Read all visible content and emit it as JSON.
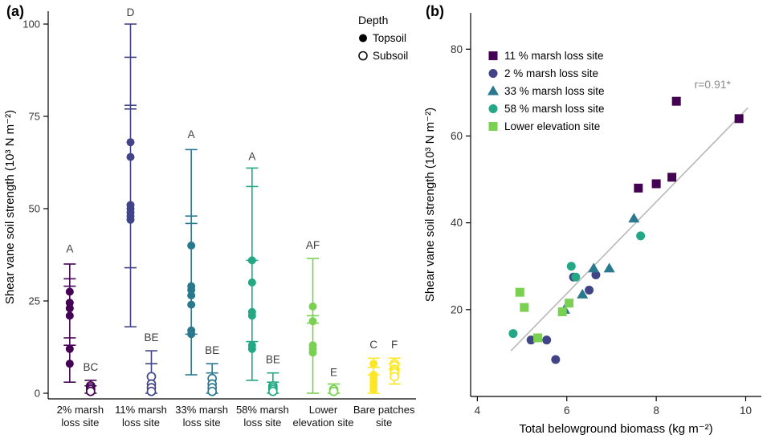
{
  "figure": {
    "background": "#ffffff"
  },
  "chart_data": [
    {
      "id": "a",
      "tag": "(a)",
      "type": "scatter",
      "ylabel": "Shear vane soil strength  (10³ N m⁻²)",
      "ylim": [
        -2,
        104
      ],
      "yticks": [
        0,
        25,
        50,
        75,
        100
      ],
      "grid": false,
      "legend": {
        "title": "Depth",
        "position": "top-right-inside",
        "items": [
          {
            "label": "Topsoil",
            "marker": "filled-circle",
            "color": "#000000"
          },
          {
            "label": "Subsoil",
            "marker": "open-circle",
            "color": "#000000"
          }
        ]
      },
      "sites": [
        {
          "label_line1": "2% marsh",
          "label_line2": "loss site",
          "color": "#440154",
          "topsoil": {
            "points": [
              27.5,
              24.5,
              23,
              21,
              12,
              8
            ],
            "whisker_low": 3,
            "whisker_high": 35,
            "caps": [
              35,
              31,
              29,
              15,
              13,
              3
            ],
            "letter": "A",
            "letter_y": 39
          },
          "subsoil": {
            "points": [
              2,
              1.5,
              1,
              0.5
            ],
            "whisker_low": 0,
            "whisker_high": 3.5,
            "caps": [
              3.5,
              2,
              0
            ],
            "letter": "BC",
            "letter_y": 7
          }
        },
        {
          "label_line1": "11% marsh",
          "label_line2": "loss site",
          "color": "#414487",
          "topsoil": {
            "points": [
              68,
              64,
              51,
              50,
              49,
              48,
              47
            ],
            "whisker_low": 18,
            "whisker_high": 100,
            "caps": [
              100,
              91,
              78,
              77,
              34,
              18
            ],
            "letter": "D",
            "letter_y": 103
          },
          "subsoil": {
            "points": [
              4.5,
              2.5,
              1.5,
              0.5
            ],
            "whisker_low": 0,
            "whisker_high": 11.5,
            "caps": [
              11.5,
              8,
              0
            ],
            "letter": "BE",
            "letter_y": 15
          }
        },
        {
          "label_line1": "33% marsh",
          "label_line2": "loss site",
          "color": "#2a788e",
          "topsoil": {
            "points": [
              40,
              29,
              28,
              26.5,
              24,
              17,
              16
            ],
            "whisker_low": 5,
            "whisker_high": 66,
            "caps": [
              66,
              48,
              46,
              16,
              5
            ],
            "letter": "A",
            "letter_y": 70
          },
          "subsoil": {
            "points": [
              4,
              2.5,
              1.5,
              0.5
            ],
            "whisker_low": 0,
            "whisker_high": 8,
            "caps": [
              8,
              5.5,
              0
            ],
            "letter": "BE",
            "letter_y": 11.5
          }
        },
        {
          "label_line1": "58% marsh",
          "label_line2": "loss site",
          "color": "#22a884",
          "topsoil": {
            "points": [
              36,
              30,
              22,
              21,
              13,
              12
            ],
            "whisker_low": 3.5,
            "whisker_high": 61,
            "caps": [
              61,
              56,
              36,
              14,
              3.5
            ],
            "letter": "A",
            "letter_y": 64
          },
          "subsoil": {
            "points": [
              2,
              1.5,
              1,
              0.5
            ],
            "whisker_low": 0,
            "whisker_high": 5.5,
            "caps": [
              5.5,
              3,
              0
            ],
            "letter": "BE",
            "letter_y": 9
          }
        },
        {
          "label_line1": "Lower",
          "label_line2": "elevation site",
          "color": "#7ad151",
          "topsoil": {
            "points": [
              23.5,
              19.5,
              13,
              12,
              11
            ],
            "whisker_low": 0,
            "whisker_high": 36.5,
            "caps": [
              36.5,
              21,
              19,
              0
            ],
            "letter": "AF",
            "letter_y": 40
          },
          "subsoil": {
            "points": [
              1,
              0.5
            ],
            "whisker_low": 0,
            "whisker_high": 2.5,
            "caps": [
              2.5,
              0
            ],
            "letter": "E",
            "letter_y": 5.5
          }
        },
        {
          "label_line1": "Bare patches",
          "label_line2": "site",
          "color": "#fde725",
          "topsoil": {
            "points": [
              8,
              5,
              4,
              3,
              2,
              1
            ],
            "whisker_low": 0,
            "whisker_high": 9.5,
            "caps": [
              9.5,
              7,
              5,
              0
            ],
            "letter": "C",
            "letter_y": 13
          },
          "subsoil": {
            "points": [
              8,
              7.5,
              6.5,
              6,
              5.5,
              4.5
            ],
            "whisker_low": 2.5,
            "whisker_high": 9.5,
            "caps": [
              9.5,
              8,
              6.5,
              2.5
            ],
            "letter": "F",
            "letter_y": 13
          }
        }
      ]
    },
    {
      "id": "b",
      "tag": "(b)",
      "type": "scatter",
      "xlabel": "Total belowground biomass (kg m⁻²)",
      "ylabel": "Shear vane soil strength (10³ N m⁻²)",
      "xlim": [
        3.85,
        10.35
      ],
      "ylim": [
        0,
        88
      ],
      "xticks": [
        4,
        6,
        8,
        10
      ],
      "yticks": [
        20,
        40,
        60,
        80
      ],
      "grid": false,
      "annotation": {
        "text": "r=0.91*",
        "x": 8.85,
        "y": 71,
        "color": "#8c8c8c"
      },
      "trendline": {
        "x1": 4.75,
        "y1": 10.5,
        "x2": 10.05,
        "y2": 66.5,
        "color": "#b8b8b8"
      },
      "legend_position": "top-left-inside",
      "series": [
        {
          "name": "11 % marsh loss site",
          "marker": "square",
          "color": "#440154",
          "points": [
            [
              7.6,
              48
            ],
            [
              8.0,
              49
            ],
            [
              8.35,
              50.5
            ],
            [
              8.45,
              68
            ],
            [
              9.85,
              64
            ]
          ]
        },
        {
          "name": "2 % marsh loss site",
          "marker": "circle",
          "color": "#414487",
          "points": [
            [
              5.2,
              13
            ],
            [
              5.55,
              13
            ],
            [
              5.75,
              8.5
            ],
            [
              6.15,
              27.5
            ],
            [
              6.5,
              24.5
            ],
            [
              6.65,
              28
            ]
          ]
        },
        {
          "name": "33 % marsh loss site",
          "marker": "triangle",
          "color": "#2a788e",
          "points": [
            [
              5.95,
              20
            ],
            [
              6.35,
              23.5
            ],
            [
              6.6,
              29.5
            ],
            [
              6.95,
              29.5
            ],
            [
              7.5,
              41
            ]
          ]
        },
        {
          "name": "58 % marsh loss site",
          "marker": "circle",
          "color": "#22a884",
          "points": [
            [
              4.8,
              14.5
            ],
            [
              6.1,
              30
            ],
            [
              6.2,
              27.5
            ],
            [
              7.65,
              37
            ]
          ]
        },
        {
          "name": "Lower elevation site",
          "marker": "square",
          "color": "#7ad151",
          "points": [
            [
              4.95,
              24
            ],
            [
              5.05,
              20.5
            ],
            [
              5.35,
              13.5
            ],
            [
              5.9,
              19.5
            ],
            [
              6.05,
              21.5
            ]
          ]
        }
      ]
    }
  ]
}
